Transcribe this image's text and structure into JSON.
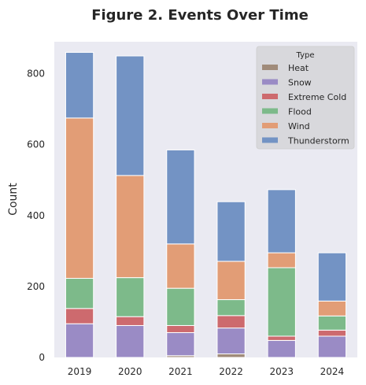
{
  "chart_data": {
    "type": "bar",
    "stacked": true,
    "title": "Figure 2. Events Over Time",
    "xlabel": "",
    "ylabel": "Count",
    "categories": [
      "2019",
      "2020",
      "2021",
      "2022",
      "2023",
      "2024"
    ],
    "ylim": [
      0,
      890
    ],
    "yticks": [
      0,
      200,
      400,
      600,
      800
    ],
    "yticks_labels": [
      "0",
      "200",
      "400",
      "600",
      "800"
    ],
    "grid": false,
    "background": "#EAEAF2",
    "legend": {
      "title": "Type",
      "placement": "top-right"
    },
    "series": [
      {
        "name": "Heat",
        "color": "#A08B7A",
        "values": [
          0,
          0,
          5,
          10,
          0,
          0
        ]
      },
      {
        "name": "Snow",
        "color": "#9A8BC5",
        "values": [
          95,
          90,
          65,
          73,
          48,
          60
        ]
      },
      {
        "name": "Extreme Cold",
        "color": "#CD6A6E",
        "values": [
          43,
          25,
          20,
          35,
          12,
          17
        ]
      },
      {
        "name": "Flood",
        "color": "#7DBA8A",
        "values": [
          85,
          110,
          105,
          45,
          193,
          40
        ]
      },
      {
        "name": "Wind",
        "color": "#E29D76",
        "values": [
          452,
          288,
          125,
          108,
          42,
          42
        ]
      },
      {
        "name": "Thunderstorm",
        "color": "#7393C4",
        "values": [
          185,
          337,
          265,
          168,
          178,
          136
        ]
      }
    ]
  }
}
